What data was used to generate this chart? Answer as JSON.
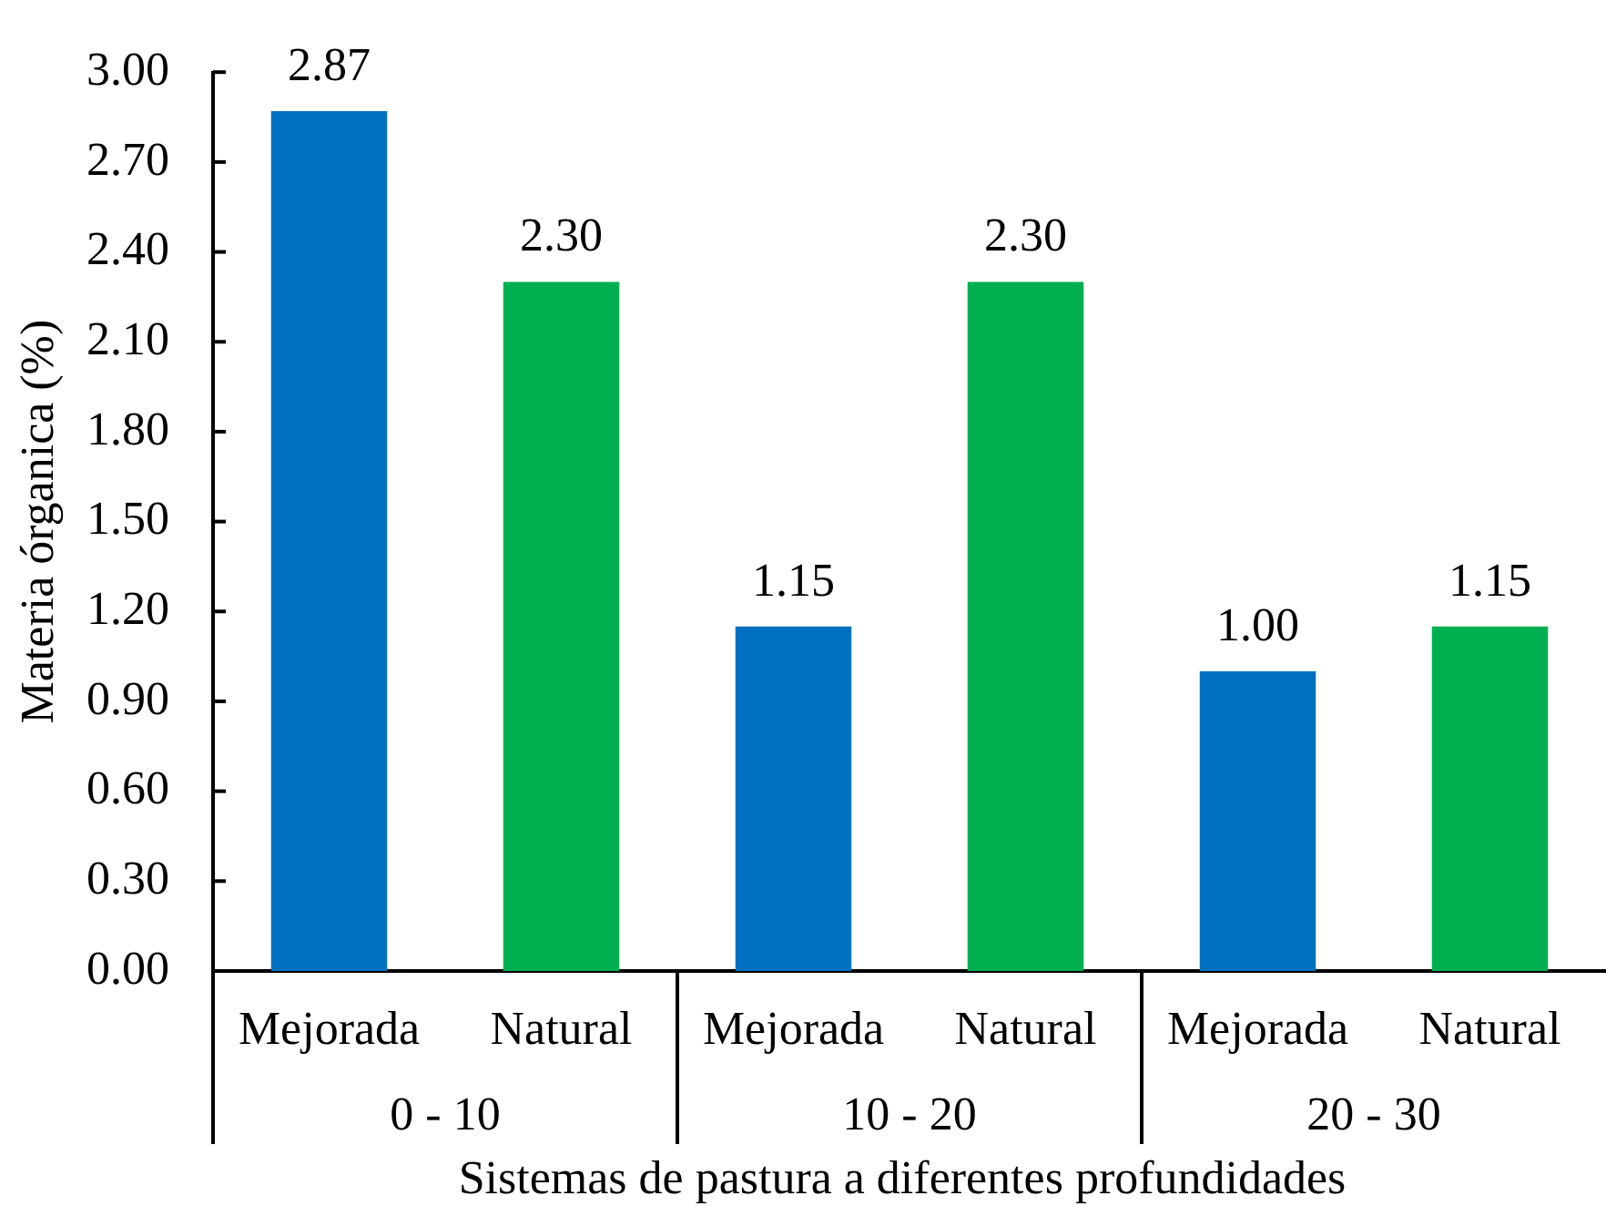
{
  "chart_data": {
    "type": "bar",
    "xlabel": "Sistemas de pastura a diferentes profundidades",
    "ylabel": "Materia órganica (%)",
    "categories": [
      "0 - 10",
      "10 - 20",
      "20 - 30"
    ],
    "series": [
      {
        "name": "Mejorada",
        "color": "#0070c0",
        "values": [
          2.87,
          1.15,
          1.0
        ],
        "value_labels": [
          "2.87",
          "1.15",
          "1.00"
        ]
      },
      {
        "name": "Natural",
        "color": "#00b050",
        "values": [
          2.3,
          2.3,
          1.15
        ],
        "value_labels": [
          "2.30",
          "2.30",
          "1.15"
        ]
      }
    ],
    "ylim": [
      0,
      3
    ],
    "yticks": [
      {
        "value": 0,
        "label": "0.00"
      },
      {
        "value": 0.3,
        "label": "0.30"
      },
      {
        "value": 0.6,
        "label": "0.60"
      },
      {
        "value": 0.9,
        "label": "0.90"
      },
      {
        "value": 1.2,
        "label": "1.20"
      },
      {
        "value": 1.5,
        "label": "1.50"
      },
      {
        "value": 1.8,
        "label": "1.80"
      },
      {
        "value": 2.1,
        "label": "2.10"
      },
      {
        "value": 2.4,
        "label": "2.40"
      },
      {
        "value": 2.7,
        "label": "2.70"
      },
      {
        "value": 3,
        "label": "3.00"
      }
    ]
  }
}
